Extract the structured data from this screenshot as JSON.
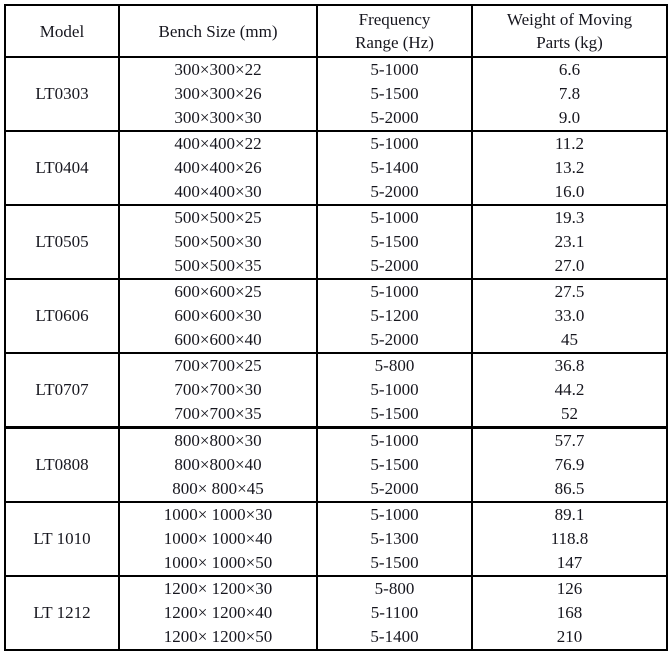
{
  "table": {
    "headers": [
      {
        "name": "model",
        "lines": [
          "Model"
        ]
      },
      {
        "name": "bench-size",
        "lines": [
          "Bench Size (mm)"
        ]
      },
      {
        "name": "frequency-range",
        "lines": [
          "Frequency",
          "Range (Hz)"
        ]
      },
      {
        "name": "weight-of-moving-parts",
        "lines": [
          "Weight of Moving",
          "Parts (kg)"
        ]
      }
    ],
    "groups": [
      {
        "model": "LT0303",
        "rows": [
          [
            "300×300×22",
            "5-1000",
            "6.6"
          ],
          [
            "300×300×26",
            "5-1500",
            "7.8"
          ],
          [
            "300×300×30",
            "5-2000",
            "9.0"
          ]
        ]
      },
      {
        "model": "LT0404",
        "rows": [
          [
            "400×400×22",
            "5-1000",
            "11.2"
          ],
          [
            "400×400×26",
            "5-1400",
            "13.2"
          ],
          [
            "400×400×30",
            "5-2000",
            "16.0"
          ]
        ]
      },
      {
        "model": "LT0505",
        "rows": [
          [
            "500×500×25",
            "5-1000",
            "19.3"
          ],
          [
            "500×500×30",
            "5-1500",
            "23.1"
          ],
          [
            "500×500×35",
            "5-2000",
            "27.0"
          ]
        ]
      },
      {
        "model": "LT0606",
        "rows": [
          [
            "600×600×25",
            "5-1000",
            "27.5"
          ],
          [
            "600×600×30",
            "5-1200",
            "33.0"
          ],
          [
            "600×600×40",
            "5-2000",
            "45"
          ]
        ]
      },
      {
        "model": "LT0707",
        "rows": [
          [
            "700×700×25",
            "5-800",
            "36.8"
          ],
          [
            "700×700×30",
            "5-1000",
            "44.2"
          ],
          [
            "700×700×35",
            "5-1500",
            "52"
          ]
        ]
      },
      {
        "model": "LT0808",
        "rows": [
          [
            "800×800×30",
            "5-1000",
            "57.7"
          ],
          [
            "800×800×40",
            "5-1500",
            "76.9"
          ],
          [
            "800× 800×45",
            "5-2000",
            "86.5"
          ]
        ]
      },
      {
        "model": "LT 1010",
        "rows": [
          [
            "1000× 1000×30",
            "5-1000",
            "89.1"
          ],
          [
            "1000× 1000×40",
            "5-1300",
            "118.8"
          ],
          [
            "1000× 1000×50",
            "5-1500",
            "147"
          ]
        ]
      },
      {
        "model": "LT 1212",
        "rows": [
          [
            "1200× 1200×30",
            "5-800",
            "126"
          ],
          [
            "1200× 1200×40",
            "5-1100",
            "168"
          ],
          [
            "1200× 1200×50",
            "5-1400",
            "210"
          ]
        ]
      }
    ]
  }
}
